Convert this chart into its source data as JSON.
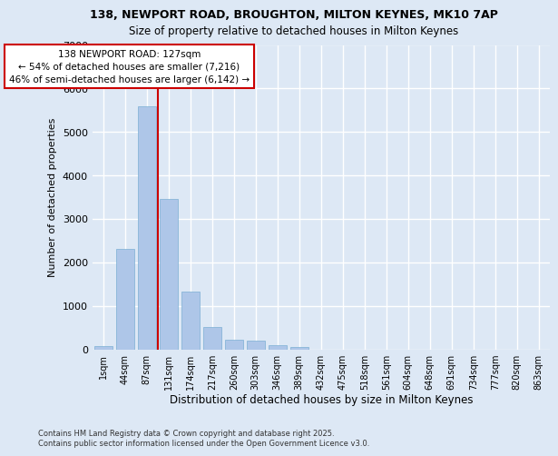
{
  "title_line1": "138, NEWPORT ROAD, BROUGHTON, MILTON KEYNES, MK10 7AP",
  "title_line2": "Size of property relative to detached houses in Milton Keynes",
  "xlabel": "Distribution of detached houses by size in Milton Keynes",
  "ylabel": "Number of detached properties",
  "footnote": "Contains HM Land Registry data © Crown copyright and database right 2025.\nContains public sector information licensed under the Open Government Licence v3.0.",
  "bar_labels": [
    "1sqm",
    "44sqm",
    "87sqm",
    "131sqm",
    "174sqm",
    "217sqm",
    "260sqm",
    "303sqm",
    "346sqm",
    "389sqm",
    "432sqm",
    "475sqm",
    "518sqm",
    "561sqm",
    "604sqm",
    "648sqm",
    "691sqm",
    "734sqm",
    "777sqm",
    "820sqm",
    "863sqm"
  ],
  "bar_values": [
    75,
    2300,
    5600,
    3450,
    1320,
    520,
    210,
    190,
    90,
    50,
    0,
    0,
    0,
    0,
    0,
    0,
    0,
    0,
    0,
    0,
    0
  ],
  "bar_color": "#aec6e8",
  "bar_edge_color": "#7bafd4",
  "background_color": "#dde8f5",
  "grid_color": "#ffffff",
  "vline_color": "#cc0000",
  "vline_pos": 2.5,
  "annotation_text": "138 NEWPORT ROAD: 127sqm\n← 54% of detached houses are smaller (7,216)\n46% of semi-detached houses are larger (6,142) →",
  "ylim": [
    0,
    7000
  ],
  "yticks": [
    0,
    1000,
    2000,
    3000,
    4000,
    5000,
    6000,
    7000
  ]
}
